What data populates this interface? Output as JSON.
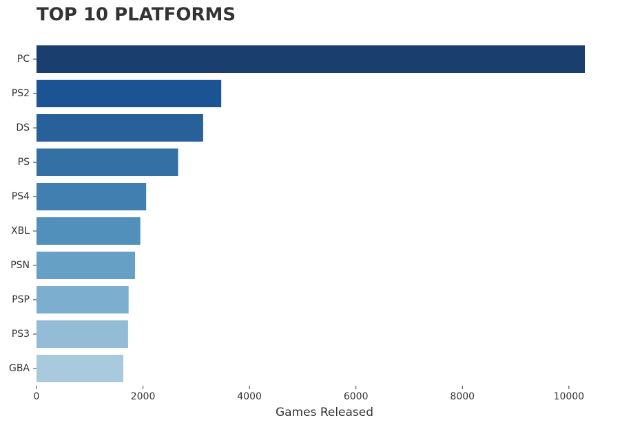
{
  "chart_data": {
    "type": "bar",
    "orientation": "horizontal",
    "title": "TOP 10 PLATFORMS",
    "x_label": "Games Released",
    "categories": [
      "PC",
      "PS2",
      "DS",
      "PS",
      "PS4",
      "XBL",
      "PSN",
      "PSP",
      "PS3",
      "GBA"
    ],
    "values": [
      10300,
      3470,
      3130,
      2660,
      2060,
      1950,
      1850,
      1730,
      1720,
      1630
    ],
    "colors": [
      "#1a3f6e",
      "#1c5493",
      "#28609a",
      "#3570a4",
      "#417fb0",
      "#5090bb",
      "#66a0c4",
      "#7cafcf",
      "#94bcd6",
      "#a9c9dd"
    ],
    "xlim": [
      0,
      10300
    ],
    "xticks": [
      0,
      2000,
      4000,
      6000,
      8000,
      10000
    ],
    "grid": false
  }
}
